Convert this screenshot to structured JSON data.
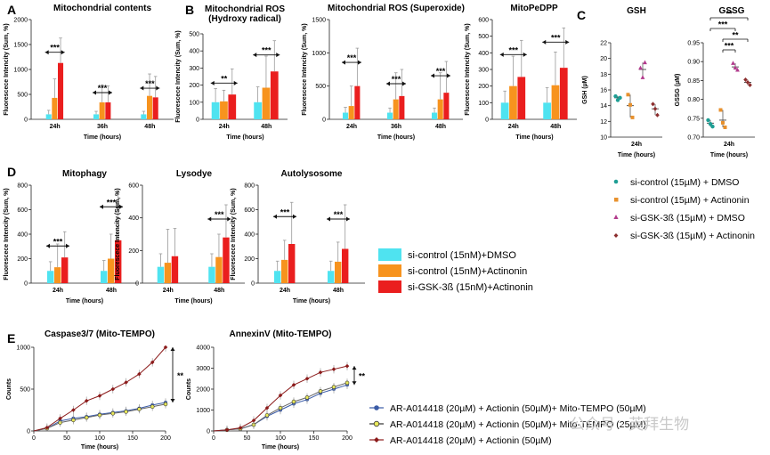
{
  "panel_letters": [
    "A",
    "B",
    "C",
    "D",
    "E"
  ],
  "colors": {
    "cyan": "#4fe3f0",
    "orange": "#f7931e",
    "red": "#ea1e1e",
    "err": "#9a9a9a",
    "c_teal": "#1e9e94",
    "c_orange": "#e8912d",
    "c_magenta": "#b23a8c",
    "c_maroon": "#8b2c2c",
    "e_blue": "#3a5ba6",
    "e_yellow": "#e8e85a",
    "e_red": "#8b1a1a"
  },
  "legend_ad": [
    "si-control (15nM)+DMSO",
    "si-control (15nM)+Actinonin",
    "si-GSK-3ß (15nM)+Actinonin"
  ],
  "legend_c": [
    "si-control (15µM) + DMSO",
    "si-control (15µM) + Actinonin",
    "si-GSK-3ß (15µM) + DMSO",
    "si-GSK-3ß (15µM) + Actinonin"
  ],
  "legend_e": [
    "AR-A014418 (20µM) + Actionin (50µM)+ Mito-TEMPO (50µM)",
    "AR-A014418 (20µM) + Actionin (50µM)+ Mito-TEMPO (25µM)",
    "AR-A014418 (20µM) + Actionin (50µM)"
  ],
  "watermark": "公众号 · 英拜生物",
  "chart_data": [
    {
      "id": "A1",
      "type": "bar",
      "title": "Mitochondrial contents",
      "xlabel": "Time (hours)",
      "ylabel": "Fluorescece Intencity (Sum, %)",
      "ylim": [
        0,
        2000
      ],
      "yticks": [
        0,
        500,
        1000,
        1500,
        2000
      ],
      "categories": [
        "24h",
        "36h",
        "48h"
      ],
      "series": [
        {
          "name": "si-control (15nM)+DMSO",
          "values": [
            100,
            100,
            100
          ],
          "errors": [
            80,
            60,
            60
          ]
        },
        {
          "name": "si-control (15nM)+Actinonin",
          "values": [
            430,
            340,
            470
          ],
          "errors": [
            380,
            350,
            440
          ]
        },
        {
          "name": "si-GSK-3ß (15nM)+Actinonin",
          "values": [
            1130,
            340,
            440
          ],
          "errors": [
            500,
            330,
            420
          ]
        }
      ],
      "significance": [
        "***",
        "***",
        "***"
      ]
    },
    {
      "id": "B1",
      "type": "bar",
      "title": "Mitochondrial ROS\n(Hydroxy radical)",
      "xlabel": "Time (hours)",
      "ylabel": "Fluorescece Intencity (Sum, %)",
      "ylim": [
        0,
        500
      ],
      "yticks": [
        0,
        100,
        200,
        300,
        400,
        500
      ],
      "categories": [
        "24h",
        "48h"
      ],
      "series": [
        {
          "name": "si-control (15nM)+DMSO",
          "values": [
            100,
            100
          ],
          "errors": [
            80,
            90
          ]
        },
        {
          "name": "si-control (15nM)+Actinonin",
          "values": [
            105,
            185
          ],
          "errors": [
            65,
            185
          ]
        },
        {
          "name": "si-GSK-3ß (15nM)+Actinonin",
          "values": [
            145,
            280
          ],
          "errors": [
            150,
            180
          ]
        }
      ],
      "significance": [
        "**",
        "***"
      ]
    },
    {
      "id": "B2",
      "type": "bar",
      "title": "Mitochondrial ROS (Superoxide)",
      "xlabel": "Time (hours)",
      "ylabel": "Fluorescece Intencity (Sum, %)",
      "ylim": [
        0,
        1500
      ],
      "yticks": [
        0,
        500,
        1000,
        1500
      ],
      "categories": [
        "24h",
        "36h",
        "48h"
      ],
      "series": [
        {
          "name": "si-control (15nM)+DMSO",
          "values": [
            100,
            100,
            100
          ],
          "errors": [
            80,
            70,
            70
          ]
        },
        {
          "name": "si-control (15nM)+Actinonin",
          "values": [
            200,
            300,
            300
          ],
          "errors": [
            300,
            400,
            400
          ]
        },
        {
          "name": "si-GSK-3ß (15nM)+Actinonin",
          "values": [
            500,
            350,
            400
          ],
          "errors": [
            570,
            400,
            470
          ]
        }
      ],
      "significance": [
        "***",
        "***",
        "***"
      ]
    },
    {
      "id": "B3",
      "type": "bar",
      "title": "MitoPeDPP",
      "xlabel": "Time (hours)",
      "ylabel": "Fluorescece Intencity (Sum, %)",
      "ylim": [
        0,
        600
      ],
      "yticks": [
        0,
        100,
        200,
        300,
        400,
        500,
        600
      ],
      "categories": [
        "24h",
        "48h"
      ],
      "series": [
        {
          "name": "si-control (15nM)+DMSO",
          "values": [
            100,
            100
          ],
          "errors": [
            70,
            90
          ]
        },
        {
          "name": "si-control (15nM)+Actinonin",
          "values": [
            200,
            205
          ],
          "errors": [
            180,
            200
          ]
        },
        {
          "name": "si-GSK-3ß (15nM)+Actinonin",
          "values": [
            255,
            310
          ],
          "errors": [
            220,
            240
          ]
        }
      ],
      "significance": [
        "***",
        "***"
      ]
    },
    {
      "id": "C1",
      "type": "scatter",
      "title": "GSH",
      "xlabel": "Time (hours)",
      "ylabel": "GSH (µM)",
      "ylim": [
        10,
        22
      ],
      "yticks": [
        10,
        12,
        14,
        16,
        18,
        20,
        22
      ],
      "categories": [
        "24h"
      ],
      "series": [
        {
          "name": "si-control (15µM) + DMSO",
          "values": [
            15.2,
            14.7,
            15.0
          ],
          "mean": 15.0
        },
        {
          "name": "si-control (15µM) + Actinonin",
          "values": [
            15.4,
            14.1,
            12.5
          ],
          "mean": 14.0
        },
        {
          "name": "si-GSK-3ß (15µM) + DMSO",
          "values": [
            18.8,
            17.6,
            19.5
          ],
          "mean": 18.6
        },
        {
          "name": "si-GSK-3ß (15µM) + Actinonin",
          "values": [
            14.2,
            13.6,
            12.8
          ],
          "mean": 13.6
        }
      ]
    },
    {
      "id": "C2",
      "type": "scatter",
      "title": "GSSG",
      "xlabel": "Time (hours)",
      "ylabel": "GSSG (µM)",
      "ylim": [
        0.7,
        0.95
      ],
      "yticks": [
        0.7,
        0.75,
        0.8,
        0.85,
        0.9,
        0.95
      ],
      "categories": [
        "24h"
      ],
      "series": [
        {
          "name": "si-control (15µM) + DMSO",
          "values": [
            0.745,
            0.735,
            0.728
          ],
          "mean": 0.737
        },
        {
          "name": "si-control (15µM) + Actinonin",
          "values": [
            0.772,
            0.738,
            0.726
          ],
          "mean": 0.745
        },
        {
          "name": "si-GSK-3ß (15µM) + DMSO",
          "values": [
            0.896,
            0.884,
            0.878
          ],
          "mean": 0.886
        },
        {
          "name": "si-GSK-3ß (15µM) + Actinonin",
          "values": [
            0.852,
            0.845,
            0.838
          ],
          "mean": 0.845
        }
      ],
      "significance": [
        "**",
        "***",
        "**",
        "***"
      ]
    },
    {
      "id": "D1",
      "type": "bar",
      "title": "Mitophagy",
      "xlabel": "Time (hours)",
      "ylabel": "Fluorescece Intencity (Sum, %)",
      "ylim": [
        0,
        800
      ],
      "yticks": [
        0,
        200,
        400,
        600,
        800
      ],
      "categories": [
        "24h",
        "48h"
      ],
      "series": [
        {
          "name": "si-control (15nM)+DMSO",
          "values": [
            100,
            100
          ],
          "errors": [
            75,
            85
          ]
        },
        {
          "name": "si-control (15nM)+Actinonin",
          "values": [
            130,
            200
          ],
          "errors": [
            190,
            200
          ]
        },
        {
          "name": "si-GSK-3ß (15nM)+Actinonin",
          "values": [
            210,
            350
          ],
          "errors": [
            210,
            390
          ]
        }
      ],
      "significance": [
        "***",
        "***"
      ]
    },
    {
      "id": "D2",
      "type": "bar",
      "title": "Lysodye",
      "xlabel": "Time (hours)",
      "ylabel": "Fluorescece Intencity (Sum, %)",
      "ylim": [
        0,
        600
      ],
      "yticks": [
        0,
        200,
        400,
        600
      ],
      "categories": [
        "24h",
        "48h"
      ],
      "series": [
        {
          "name": "si-control (15nM)+DMSO",
          "values": [
            100,
            100
          ],
          "errors": [
            80,
            80
          ]
        },
        {
          "name": "si-control (15nM)+Actinonin",
          "values": [
            125,
            160
          ],
          "errors": [
            205,
            140
          ]
        },
        {
          "name": "si-GSK-3ß (15nM)+Actinonin",
          "values": [
            165,
            280
          ],
          "errors": [
            170,
            200
          ]
        }
      ],
      "significance": [
        "",
        "***"
      ]
    },
    {
      "id": "D3",
      "type": "bar",
      "title": "Autolysosome",
      "xlabel": "Time (hours)",
      "ylabel": "Fluorescece Intencity (Sum, %)",
      "ylim": [
        0,
        800
      ],
      "yticks": [
        0,
        200,
        400,
        600,
        800
      ],
      "categories": [
        "24h",
        "48h"
      ],
      "series": [
        {
          "name": "si-control (15nM)+DMSO",
          "values": [
            100,
            100
          ],
          "errors": [
            80,
            80
          ]
        },
        {
          "name": "si-control (15nM)+Actinonin",
          "values": [
            190,
            175
          ],
          "errors": [
            160,
            160
          ]
        },
        {
          "name": "si-GSK-3ß (15nM)+Actinonin",
          "values": [
            320,
            280
          ],
          "errors": [
            340,
            360
          ]
        }
      ],
      "significance": [
        "***",
        "***"
      ]
    },
    {
      "id": "E1",
      "type": "line",
      "title": "Caspase3/7 (Mito-TEMPO)",
      "xlabel": "Time (hours)",
      "ylabel": "Counts",
      "xlim": [
        0,
        200
      ],
      "ylim": [
        0,
        1000
      ],
      "xticks": [
        0,
        50,
        100,
        150,
        200
      ],
      "yticks": [
        0,
        500,
        1000
      ],
      "series": [
        {
          "name": "AR-A014418 (20µM) + Actionin (50µM)+ Mito-TEMPO (50µM)",
          "x": [
            0,
            20,
            40,
            60,
            80,
            100,
            120,
            140,
            160,
            180,
            200
          ],
          "y": [
            0,
            30,
            120,
            150,
            170,
            200,
            220,
            240,
            270,
            310,
            340
          ]
        },
        {
          "name": "AR-A014418 (20µM) + Actionin (50µM)+ Mito-TEMPO (25µM)",
          "x": [
            0,
            20,
            40,
            60,
            80,
            100,
            120,
            140,
            160,
            180,
            200
          ],
          "y": [
            0,
            30,
            100,
            130,
            160,
            190,
            210,
            230,
            260,
            290,
            320
          ]
        },
        {
          "name": "AR-A014418 (20µM) + Actionin (50µM)",
          "x": [
            0,
            20,
            40,
            60,
            80,
            100,
            120,
            140,
            160,
            180,
            200
          ],
          "y": [
            0,
            40,
            150,
            250,
            360,
            420,
            500,
            580,
            680,
            820,
            1000
          ]
        }
      ],
      "significance": "**"
    },
    {
      "id": "E2",
      "type": "line",
      "title": "AnnexinV (Mito-TEMPO)",
      "xlabel": "Time (hours)",
      "ylabel": "Counts",
      "xlim": [
        0,
        200
      ],
      "ylim": [
        0,
        4000
      ],
      "xticks": [
        0,
        50,
        100,
        150,
        200
      ],
      "yticks": [
        0,
        1000,
        2000,
        3000,
        4000
      ],
      "series": [
        {
          "name": "AR-A014418 (20µM) + Actionin (50µM)+ Mito-TEMPO (50µM)",
          "x": [
            0,
            20,
            40,
            60,
            80,
            100,
            120,
            140,
            160,
            180,
            200
          ],
          "y": [
            0,
            50,
            100,
            300,
            700,
            1000,
            1300,
            1500,
            1800,
            2000,
            2200
          ]
        },
        {
          "name": "AR-A014418 (20µM) + Actionin (50µM)+ Mito-TEMPO (25µM)",
          "x": [
            0,
            20,
            40,
            60,
            80,
            100,
            120,
            140,
            160,
            180,
            200
          ],
          "y": [
            0,
            50,
            100,
            300,
            750,
            1100,
            1400,
            1600,
            1900,
            2100,
            2300
          ]
        },
        {
          "name": "AR-A014418 (20µM) + Actionin (50µM)",
          "x": [
            0,
            20,
            40,
            60,
            80,
            100,
            120,
            140,
            160,
            180,
            200
          ],
          "y": [
            0,
            50,
            150,
            500,
            1100,
            1700,
            2200,
            2500,
            2800,
            2950,
            3100
          ]
        }
      ],
      "significance": "**"
    }
  ]
}
